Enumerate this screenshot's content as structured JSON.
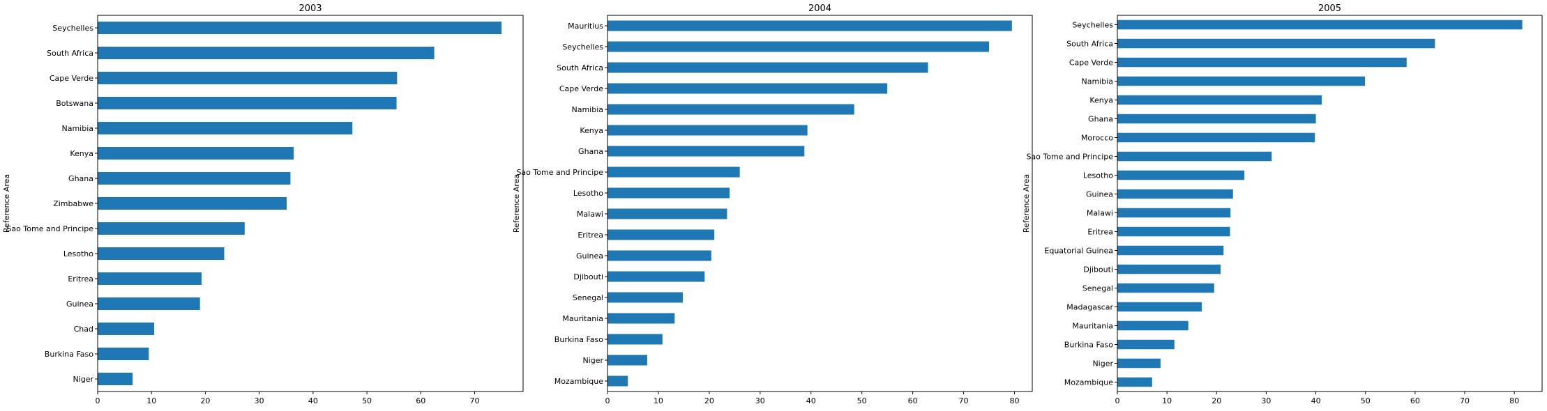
{
  "figure": {
    "bar_color": "#1f77b4",
    "ylabel": "Reference Area"
  },
  "chart_data": [
    {
      "type": "bar",
      "orientation": "horizontal",
      "title": "2003",
      "ylabel": "Reference Area",
      "xlim": [
        0,
        79
      ],
      "xticks": [
        0,
        10,
        20,
        30,
        40,
        50,
        60,
        70
      ],
      "categories": [
        "Seychelles",
        "South Africa",
        "Cape Verde",
        "Botswana",
        "Namibia",
        "Kenya",
        "Ghana",
        "Zimbabwe",
        "Sao Tome and Principe",
        "Lesotho",
        "Eritrea",
        "Guinea",
        "Chad",
        "Burkina Faso",
        "Niger"
      ],
      "values": [
        75.0,
        62.5,
        55.6,
        55.5,
        47.3,
        36.4,
        35.8,
        35.1,
        27.3,
        23.5,
        19.3,
        19.0,
        10.5,
        9.5,
        6.5
      ]
    },
    {
      "type": "bar",
      "orientation": "horizontal",
      "title": "2004",
      "ylabel": "Reference Area",
      "xlim": [
        0,
        83.5
      ],
      "xticks": [
        0,
        10,
        20,
        30,
        40,
        50,
        60,
        70,
        80
      ],
      "categories": [
        "Mauritius",
        "Seychelles",
        "South Africa",
        "Cape Verde",
        "Namibia",
        "Kenya",
        "Ghana",
        "Sao Tome and Principe",
        "Lesotho",
        "Malawi",
        "Eritrea",
        "Guinea",
        "Djibouti",
        "Senegal",
        "Mauritania",
        "Burkina Faso",
        "Niger",
        "Mozambique"
      ],
      "values": [
        79.5,
        75.0,
        63.0,
        55.0,
        48.5,
        39.3,
        38.7,
        26.0,
        24.0,
        23.5,
        21.0,
        20.4,
        19.1,
        14.8,
        13.2,
        10.8,
        7.8,
        4.0
      ]
    },
    {
      "type": "bar",
      "orientation": "horizontal",
      "title": "2005",
      "ylabel": "Reference Area",
      "xlim": [
        0,
        85.6
      ],
      "xticks": [
        0,
        10,
        20,
        30,
        40,
        50,
        60,
        70,
        80
      ],
      "categories": [
        "Seychelles",
        "South Africa",
        "Cape Verde",
        "Namibia",
        "Kenya",
        "Ghana",
        "Morocco",
        "Sao Tome and Principe",
        "Lesotho",
        "Guinea",
        "Malawi",
        "Eritrea",
        "Equatorial Guinea",
        "Djibouti",
        "Senegal",
        "Madagascar",
        "Mauritania",
        "Burkina Faso",
        "Niger",
        "Mozambique"
      ],
      "values": [
        81.6,
        64.0,
        58.3,
        49.9,
        41.2,
        40.0,
        39.8,
        31.1,
        25.6,
        23.3,
        22.8,
        22.7,
        21.4,
        20.8,
        19.5,
        17.0,
        14.3,
        11.5,
        8.7,
        7.0
      ]
    }
  ]
}
